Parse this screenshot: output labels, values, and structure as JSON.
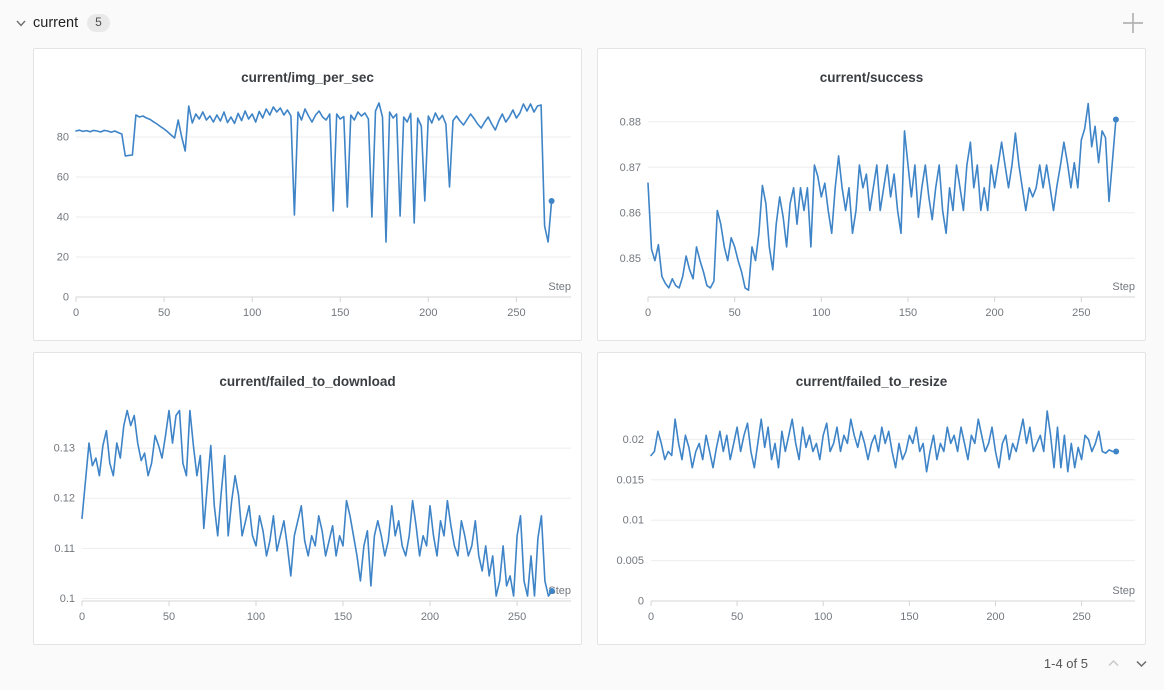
{
  "header": {
    "section_label": "current",
    "badge_count": "5"
  },
  "footer": {
    "pagination": "1-4 of 5"
  },
  "colors": {
    "accent_line": "#3e84c7",
    "page_bg": "#fafafa",
    "card_bg": "#ffffff",
    "card_border": "#e4e4e4",
    "grid_line": "#ededed",
    "axis_line": "#d4d4d4",
    "tick_text": "#73787e",
    "title_text": "#3a3e42"
  },
  "chart_data": [
    {
      "type": "line",
      "title": "current/img_per_sec",
      "xlabel": "Step",
      "xlim": [
        0,
        281
      ],
      "ylim": [
        0,
        99
      ],
      "xticks": [
        0,
        50,
        100,
        150,
        200,
        250
      ],
      "xtick_labels": [
        "0",
        "50",
        "100",
        "150",
        "200",
        "250"
      ],
      "yticks": [
        0,
        20,
        40,
        60,
        80
      ],
      "ytick_labels": [
        "0",
        "20",
        "40",
        "60",
        "80"
      ],
      "margin_left": 42,
      "x_start": 0,
      "x_step": 2,
      "values": [
        83,
        83.4,
        82.8,
        83.2,
        82.6,
        83.3,
        83,
        82.5,
        83.3,
        83,
        82.4,
        83,
        82.2,
        81.5,
        70.5,
        70.8,
        71,
        91,
        90,
        90.5,
        89.5,
        88.8,
        87.6,
        86.5,
        85.2,
        84,
        82.6,
        81,
        79.5,
        88.5,
        80,
        73,
        95.5,
        87,
        91.5,
        89,
        92.5,
        88.5,
        90.5,
        87.5,
        91,
        88,
        92.5,
        87.2,
        90,
        86.8,
        91.8,
        88.2,
        93,
        89,
        91.5,
        87.5,
        92.8,
        89.5,
        94,
        91,
        95,
        92.5,
        94.5,
        91,
        93.5,
        90.5,
        41,
        92.5,
        88.5,
        94,
        90.5,
        87.5,
        91,
        93,
        90,
        88.5,
        91.5,
        43,
        91.5,
        89,
        90.2,
        45,
        91,
        88.5,
        92.5,
        90.5,
        92,
        89,
        40,
        93,
        97,
        90,
        27.5,
        92.5,
        89.5,
        91.5,
        40.5,
        90,
        87.5,
        91.8,
        37,
        89.5,
        85.5,
        48,
        90.5,
        87,
        92,
        88.5,
        90.8,
        86.5,
        55,
        88.2,
        90.5,
        88,
        86,
        88.8,
        91.5,
        89.2,
        86.5,
        84.5,
        87.5,
        90,
        86.5,
        83.5,
        88,
        91.5,
        87.5,
        90,
        93.5,
        89.5,
        92,
        96.5,
        93,
        96.5,
        92.5,
        95.5,
        96,
        35.5,
        27.5,
        48
      ],
      "end_dot": true
    },
    {
      "type": "line",
      "title": "current/success",
      "xlabel": "Step",
      "xlim": [
        0,
        281
      ],
      "ylim": [
        0.8415,
        0.885
      ],
      "xticks": [
        0,
        50,
        100,
        150,
        200,
        250
      ],
      "xtick_labels": [
        "0",
        "50",
        "100",
        "150",
        "200",
        "250"
      ],
      "yticks": [
        0.85,
        0.86,
        0.87,
        0.88
      ],
      "ytick_labels": [
        "0.85",
        "0.86",
        "0.87",
        "0.88"
      ],
      "margin_left": 50,
      "x_start": 0,
      "x_step": 2,
      "values": [
        0.8665,
        0.852,
        0.8495,
        0.853,
        0.846,
        0.8445,
        0.8435,
        0.8455,
        0.844,
        0.8435,
        0.846,
        0.8505,
        0.8475,
        0.8455,
        0.8525,
        0.8495,
        0.847,
        0.844,
        0.8435,
        0.845,
        0.8605,
        0.8575,
        0.8525,
        0.8495,
        0.8545,
        0.8525,
        0.8495,
        0.847,
        0.8435,
        0.843,
        0.8525,
        0.8495,
        0.8555,
        0.866,
        0.862,
        0.8525,
        0.8475,
        0.8575,
        0.8635,
        0.859,
        0.8525,
        0.862,
        0.8655,
        0.8575,
        0.8655,
        0.8605,
        0.8655,
        0.8525,
        0.8705,
        0.868,
        0.8635,
        0.8665,
        0.8605,
        0.8555,
        0.8655,
        0.8725,
        0.8655,
        0.8605,
        0.8655,
        0.8555,
        0.8605,
        0.8705,
        0.8655,
        0.8685,
        0.8605,
        0.8655,
        0.8705,
        0.8605,
        0.8655,
        0.8705,
        0.8635,
        0.8685,
        0.8605,
        0.8555,
        0.878,
        0.8705,
        0.8635,
        0.8705,
        0.859,
        0.8655,
        0.8705,
        0.8635,
        0.8585,
        0.8655,
        0.8705,
        0.8605,
        0.8555,
        0.8655,
        0.8605,
        0.8705,
        0.8655,
        0.8605,
        0.8705,
        0.8755,
        0.8655,
        0.8705,
        0.8605,
        0.8655,
        0.8605,
        0.8705,
        0.8655,
        0.8705,
        0.8755,
        0.8705,
        0.8655,
        0.8705,
        0.8775,
        0.8705,
        0.8655,
        0.8605,
        0.8655,
        0.8635,
        0.8655,
        0.8705,
        0.8655,
        0.8705,
        0.8655,
        0.8605,
        0.866,
        0.8705,
        0.8755,
        0.871,
        0.8655,
        0.871,
        0.8655,
        0.876,
        0.8785,
        0.884,
        0.8745,
        0.879,
        0.871,
        0.878,
        0.8765,
        0.8625,
        0.8715,
        0.8805
      ],
      "end_dot": true
    },
    {
      "type": "line",
      "title": "current/failed_to_download",
      "xlabel": "Step",
      "xlim": [
        0,
        281
      ],
      "ylim": [
        0.0995,
        0.139
      ],
      "xticks": [
        0,
        50,
        100,
        150,
        200,
        250
      ],
      "xtick_labels": [
        "0",
        "50",
        "100",
        "150",
        "200",
        "250"
      ],
      "yticks": [
        0.1,
        0.11,
        0.12,
        0.13
      ],
      "ytick_labels": [
        "0.1",
        "0.11",
        "0.12",
        "0.13"
      ],
      "margin_left": 48,
      "x_start": 0,
      "x_step": 2,
      "values": [
        0.116,
        0.1235,
        0.131,
        0.1265,
        0.128,
        0.1245,
        0.1305,
        0.1335,
        0.127,
        0.1245,
        0.131,
        0.128,
        0.1345,
        0.1375,
        0.1345,
        0.1365,
        0.131,
        0.1275,
        0.129,
        0.1245,
        0.127,
        0.1325,
        0.1305,
        0.128,
        0.1325,
        0.1375,
        0.131,
        0.1365,
        0.1375,
        0.127,
        0.1245,
        0.1375,
        0.1305,
        0.1245,
        0.1285,
        0.114,
        0.1225,
        0.1305,
        0.1185,
        0.1125,
        0.121,
        0.1285,
        0.1125,
        0.1195,
        0.1245,
        0.1205,
        0.1125,
        0.1155,
        0.1185,
        0.1125,
        0.1105,
        0.1165,
        0.1135,
        0.1085,
        0.1115,
        0.1165,
        0.1095,
        0.1125,
        0.1155,
        0.1105,
        0.1045,
        0.1125,
        0.1155,
        0.1185,
        0.1115,
        0.1085,
        0.1125,
        0.1105,
        0.1165,
        0.1135,
        0.1085,
        0.1115,
        0.1145,
        0.1085,
        0.1125,
        0.1105,
        0.1195,
        0.1165,
        0.1125,
        0.1085,
        0.1035,
        0.1105,
        0.1135,
        0.1025,
        0.1125,
        0.1155,
        0.1125,
        0.1085,
        0.1115,
        0.1185,
        0.1125,
        0.1155,
        0.1105,
        0.1085,
        0.1125,
        0.1195,
        0.1145,
        0.1085,
        0.1125,
        0.1105,
        0.1185,
        0.1125,
        0.1085,
        0.1155,
        0.1125,
        0.1195,
        0.1145,
        0.1105,
        0.1085,
        0.1155,
        0.1125,
        0.1085,
        0.1105,
        0.1155,
        0.1085,
        0.1055,
        0.1105,
        0.1045,
        0.1085,
        0.1005,
        0.1035,
        0.1105,
        0.1025,
        0.1045,
        0.1005,
        0.1125,
        0.1165,
        0.1035,
        0.1005,
        0.1085,
        0.1005,
        0.112,
        0.1165,
        0.1035,
        0.1005,
        0.1015
      ],
      "end_dot": true
    },
    {
      "type": "line",
      "title": "current/failed_to_resize",
      "xlabel": "Step",
      "xlim": [
        0,
        281
      ],
      "ylim": [
        0,
        0.0245
      ],
      "xticks": [
        0,
        50,
        100,
        150,
        200,
        250
      ],
      "xtick_labels": [
        "0",
        "50",
        "100",
        "150",
        "200",
        "250"
      ],
      "yticks": [
        0,
        0.005,
        0.01,
        0.015,
        0.02
      ],
      "ytick_labels": [
        "0",
        "0.005",
        "0.01",
        "0.015",
        "0.02"
      ],
      "margin_left": 53,
      "x_start": 0,
      "x_step": 2,
      "values": [
        0.018,
        0.0185,
        0.021,
        0.0195,
        0.0175,
        0.0185,
        0.018,
        0.0225,
        0.0195,
        0.0175,
        0.0205,
        0.019,
        0.0165,
        0.0185,
        0.0195,
        0.0175,
        0.0205,
        0.0185,
        0.0165,
        0.019,
        0.021,
        0.0185,
        0.0205,
        0.0175,
        0.0195,
        0.0215,
        0.0185,
        0.0205,
        0.022,
        0.0185,
        0.0165,
        0.0195,
        0.0225,
        0.019,
        0.0215,
        0.0175,
        0.0195,
        0.0165,
        0.021,
        0.0185,
        0.0205,
        0.0225,
        0.0195,
        0.0175,
        0.0215,
        0.019,
        0.0205,
        0.0185,
        0.0195,
        0.0175,
        0.0205,
        0.022,
        0.0185,
        0.0195,
        0.0215,
        0.0185,
        0.0205,
        0.0195,
        0.0225,
        0.0205,
        0.019,
        0.021,
        0.0195,
        0.0175,
        0.0195,
        0.0205,
        0.0185,
        0.0215,
        0.0195,
        0.021,
        0.0185,
        0.0165,
        0.0195,
        0.0175,
        0.0185,
        0.0205,
        0.0195,
        0.0215,
        0.0185,
        0.0195,
        0.016,
        0.0185,
        0.0205,
        0.0175,
        0.0195,
        0.0185,
        0.0215,
        0.0195,
        0.0205,
        0.0185,
        0.0215,
        0.0195,
        0.0175,
        0.0205,
        0.0195,
        0.0225,
        0.0205,
        0.0185,
        0.0195,
        0.0215,
        0.0185,
        0.0165,
        0.0195,
        0.0205,
        0.0175,
        0.0195,
        0.0185,
        0.0205,
        0.0225,
        0.0195,
        0.0215,
        0.0185,
        0.0195,
        0.0205,
        0.0185,
        0.0235,
        0.0205,
        0.0165,
        0.0215,
        0.0165,
        0.0205,
        0.016,
        0.0195,
        0.0165,
        0.019,
        0.0175,
        0.0205,
        0.02,
        0.0185,
        0.0195,
        0.021,
        0.0185,
        0.0183,
        0.0187,
        0.0185,
        0.0185
      ],
      "end_dot": true
    }
  ]
}
